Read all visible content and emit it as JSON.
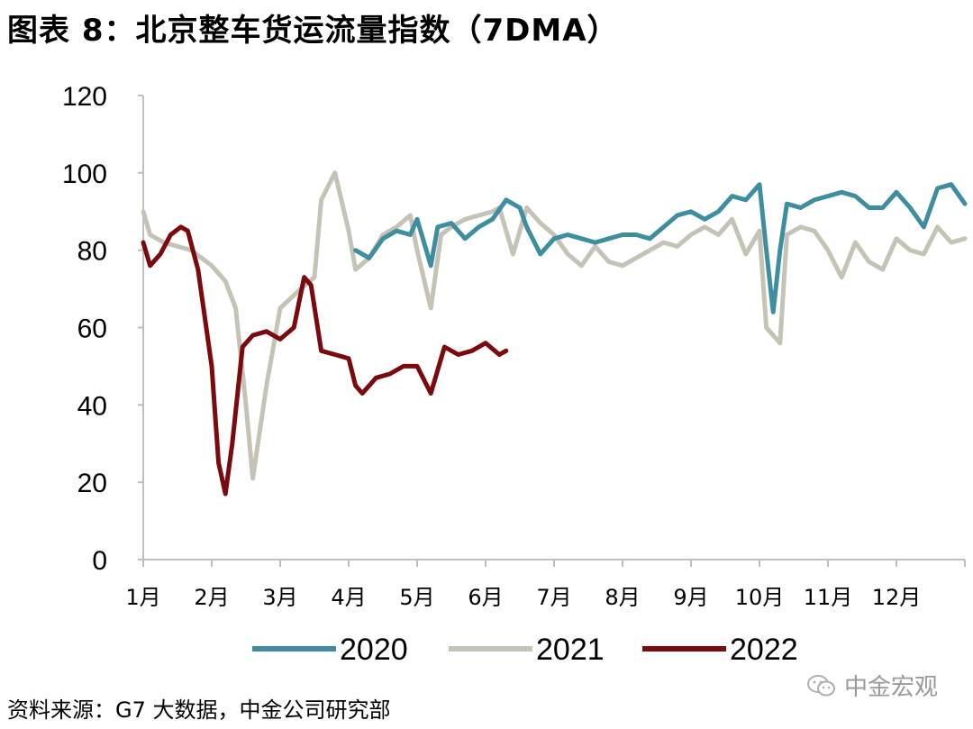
{
  "title": "图表 8：北京整车货运流量指数（7DMA）",
  "source": "资料来源：G7 大数据，中金公司研究部",
  "watermark": "中金宏观",
  "colors": {
    "2020": "#3f8ea0",
    "2021": "#c5c2b6",
    "2022": "#7b0a0e",
    "axis": "#bfbfbf"
  },
  "chart_data": {
    "type": "line",
    "title": "北京整车货运流量指数（7DMA）",
    "xlabel": "",
    "ylabel": "",
    "ylim": [
      0,
      120
    ],
    "yticks": [
      0,
      20,
      40,
      60,
      80,
      100,
      120
    ],
    "xlim": [
      1,
      13
    ],
    "categories": [
      "1月",
      "2月",
      "3月",
      "4月",
      "5月",
      "6月",
      "7月",
      "8月",
      "9月",
      "10月",
      "11月",
      "12月"
    ],
    "legend_position": "bottom",
    "series": [
      {
        "name": "2020",
        "x": [
          4.1,
          4.3,
          4.5,
          4.7,
          4.9,
          5.0,
          5.2,
          5.3,
          5.5,
          5.7,
          5.9,
          6.1,
          6.3,
          6.5,
          6.6,
          6.8,
          7.0,
          7.2,
          7.4,
          7.6,
          7.8,
          8.0,
          8.2,
          8.4,
          8.6,
          8.8,
          9.0,
          9.2,
          9.4,
          9.6,
          9.8,
          10.0,
          10.1,
          10.2,
          10.3,
          10.4,
          10.6,
          10.8,
          11.0,
          11.2,
          11.4,
          11.6,
          11.8,
          12.0,
          12.2,
          12.4,
          12.6,
          12.8,
          13.0
        ],
        "values": [
          80,
          78,
          83,
          85,
          84,
          88,
          76,
          86,
          87,
          83,
          86,
          88,
          93,
          91,
          86,
          79,
          83,
          84,
          83,
          82,
          83,
          84,
          84,
          83,
          86,
          89,
          90,
          88,
          90,
          94,
          93,
          97,
          80,
          64,
          80,
          92,
          91,
          93,
          94,
          95,
          94,
          91,
          91,
          95,
          91,
          86,
          96,
          97,
          92
        ]
      },
      {
        "name": "2021",
        "x": [
          1.0,
          1.1,
          1.3,
          1.5,
          1.7,
          2.0,
          2.2,
          2.35,
          2.5,
          2.6,
          2.8,
          3.0,
          3.3,
          3.5,
          3.6,
          3.8,
          4.0,
          4.1,
          4.3,
          4.5,
          4.7,
          4.9,
          5.0,
          5.2,
          5.35,
          5.5,
          5.7,
          5.9,
          6.1,
          6.2,
          6.4,
          6.6,
          6.8,
          7.0,
          7.2,
          7.4,
          7.6,
          7.8,
          8.0,
          8.2,
          8.4,
          8.6,
          8.8,
          9.0,
          9.2,
          9.4,
          9.6,
          9.8,
          10.0,
          10.1,
          10.3,
          10.4,
          10.6,
          10.8,
          11.0,
          11.2,
          11.4,
          11.6,
          11.8,
          12.0,
          12.2,
          12.4,
          12.6,
          12.8,
          13.0
        ],
        "values": [
          90,
          84,
          82,
          81,
          80,
          76,
          72,
          65,
          40,
          21,
          45,
          65,
          70,
          73,
          93,
          100,
          85,
          75,
          78,
          84,
          86,
          89,
          80,
          65,
          84,
          86,
          88,
          89,
          90,
          91,
          79,
          91,
          87,
          84,
          79,
          76,
          81,
          77,
          76,
          78,
          80,
          82,
          81,
          84,
          86,
          84,
          88,
          79,
          85,
          60,
          56,
          84,
          86,
          85,
          80,
          73,
          82,
          77,
          75,
          83,
          80,
          79,
          86,
          82,
          83
        ]
      },
      {
        "name": "2022",
        "x": [
          1.0,
          1.1,
          1.25,
          1.4,
          1.55,
          1.65,
          1.8,
          2.0,
          2.1,
          2.2,
          2.3,
          2.45,
          2.6,
          2.8,
          3.0,
          3.2,
          3.35,
          3.45,
          3.6,
          3.8,
          4.0,
          4.1,
          4.2,
          4.4,
          4.6,
          4.8,
          5.0,
          5.2,
          5.4,
          5.6,
          5.8,
          6.0,
          6.2,
          6.3
        ],
        "values": [
          82,
          76,
          79,
          84,
          86,
          85,
          75,
          50,
          25,
          17,
          30,
          55,
          58,
          59,
          57,
          60,
          73,
          71,
          54,
          53,
          52,
          45,
          43,
          47,
          48,
          50,
          50,
          43,
          55,
          53,
          54,
          56,
          53,
          54
        ]
      }
    ]
  }
}
